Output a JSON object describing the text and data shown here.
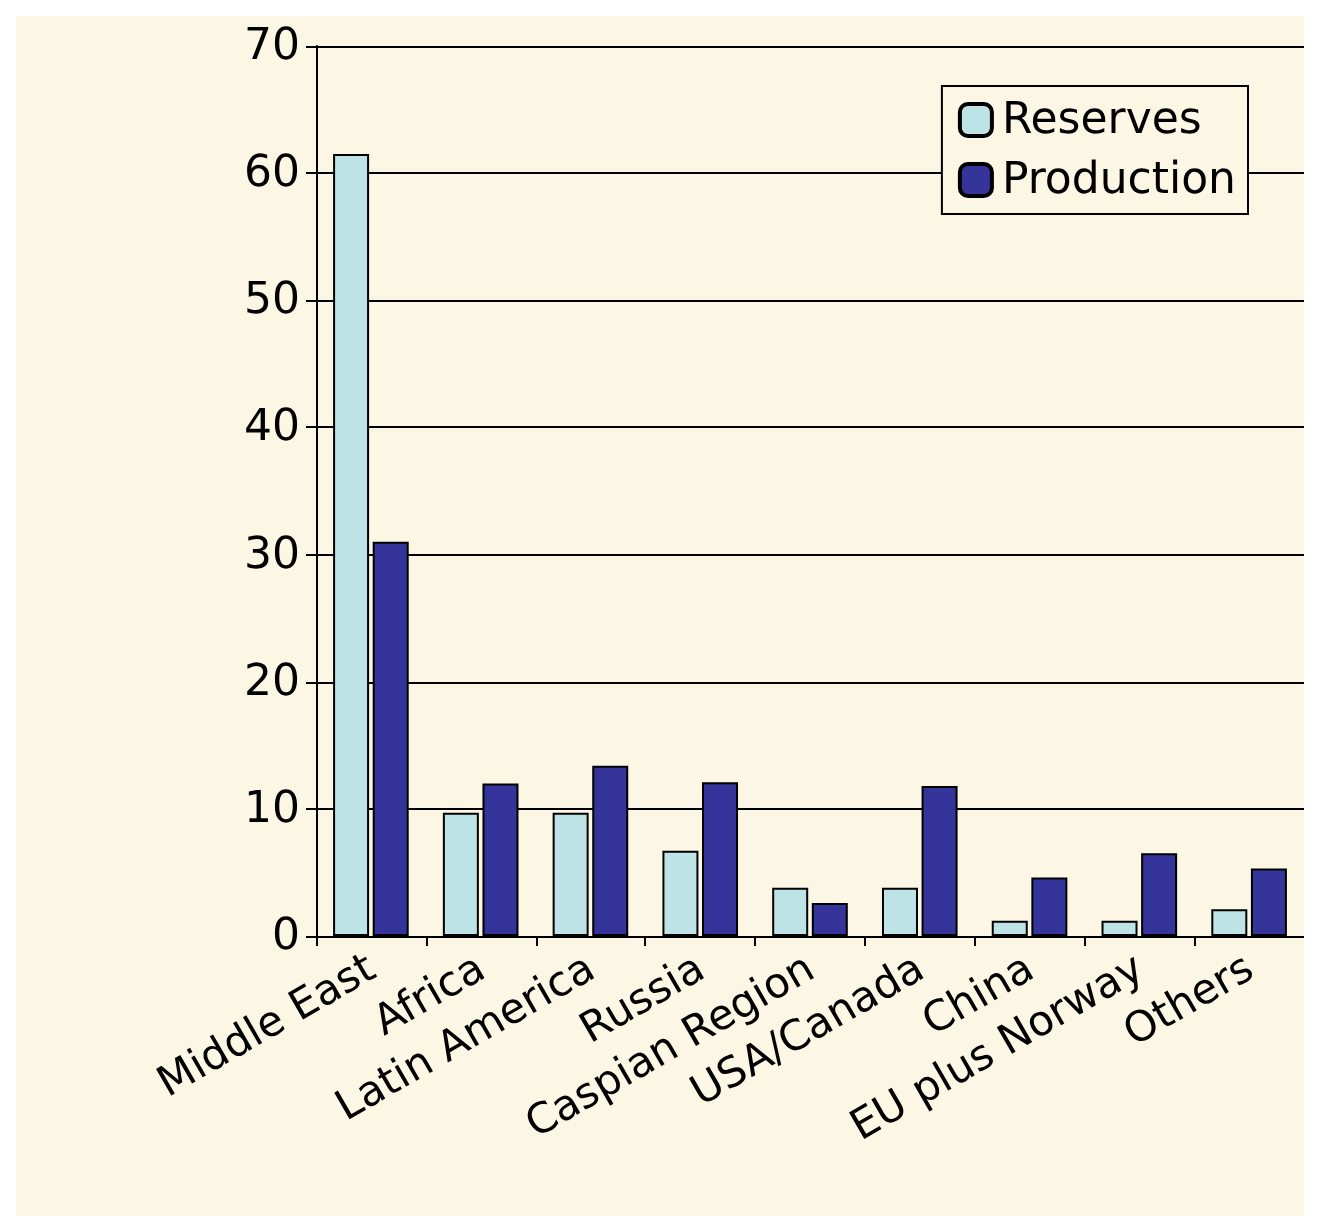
{
  "chart_data": {
    "type": "bar",
    "categories": [
      "Middle East",
      "Africa",
      "Latin America",
      "Russia",
      "Caspian Region",
      "USA/Canada",
      "China",
      "EU plus Norway",
      "Others"
    ],
    "series": [
      {
        "name": "Reserves",
        "color": "#bde3e6",
        "values": [
          61.5,
          9.7,
          9.7,
          6.7,
          3.8,
          3.8,
          1.2,
          1.2,
          2.1
        ]
      },
      {
        "name": "Production",
        "color": "#34349a",
        "values": [
          31,
          12,
          13.4,
          12.1,
          2.6,
          11.8,
          4.6,
          6.5,
          5.3
        ]
      }
    ],
    "ylim": [
      0,
      70
    ],
    "yticks": [
      0,
      10,
      20,
      30,
      40,
      50,
      60,
      70
    ],
    "grid": "y",
    "legend": "top right"
  }
}
